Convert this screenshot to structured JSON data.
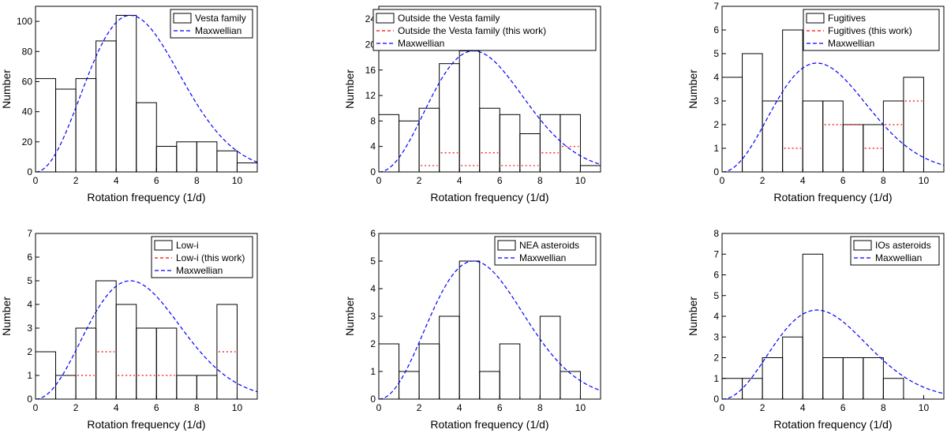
{
  "figure": {
    "panels": [
      {
        "chart_data": {
          "type": "bar",
          "bin_edges": [
            0,
            1,
            2,
            3,
            4,
            5,
            6,
            7,
            8,
            9,
            10,
            11
          ],
          "values": [
            62,
            55,
            62,
            87,
            104,
            46,
            17,
            20,
            20,
            14,
            6
          ],
          "xlabel": "Rotation frequency (1/d)",
          "ylabel": "Number",
          "xlim": [
            0,
            11
          ],
          "ylim": [
            0,
            110
          ],
          "xticks": [
            0,
            2,
            4,
            6,
            8,
            10
          ],
          "yticks": [
            0,
            20,
            40,
            60,
            80,
            100
          ],
          "maxwellian_peak": 104,
          "maxwellian_mode": 4.7,
          "legend": [
            "Vesta family",
            "Maxwellian"
          ],
          "legend_position": "top-right"
        }
      },
      {
        "chart_data": {
          "type": "bar",
          "bin_edges": [
            0,
            1,
            2,
            3,
            4,
            5,
            6,
            7,
            8,
            9,
            10,
            11
          ],
          "values": [
            9,
            8,
            10,
            17,
            19,
            10,
            9,
            6,
            9,
            9,
            1
          ],
          "this_work_values": [
            0,
            0,
            1,
            3,
            1,
            3,
            1,
            1,
            3,
            4,
            0
          ],
          "xlabel": "Rotation frequency (1/d)",
          "ylabel": "Number",
          "xlim": [
            0,
            11
          ],
          "ylim": [
            0,
            26
          ],
          "xticks": [
            0,
            2,
            4,
            6,
            8,
            10
          ],
          "yticks": [
            0,
            4,
            8,
            12,
            16,
            20,
            24
          ],
          "maxwellian_peak": 19,
          "maxwellian_mode": 4.7,
          "legend": [
            "Outside the Vesta family",
            "Outside the Vesta family (this work)",
            "Maxwellian"
          ],
          "legend_position": "top-right"
        }
      },
      {
        "chart_data": {
          "type": "bar",
          "bin_edges": [
            0,
            1,
            2,
            3,
            4,
            5,
            6,
            7,
            8,
            9,
            10,
            11
          ],
          "values": [
            4,
            5,
            3,
            6,
            3,
            3,
            2,
            2,
            3,
            4,
            0
          ],
          "this_work_values": [
            0,
            0,
            0,
            1,
            0,
            2,
            2,
            1,
            2,
            3,
            0
          ],
          "xlabel": "Rotation frequency (1/d)",
          "ylabel": "Number",
          "xlim": [
            0,
            11
          ],
          "ylim": [
            0,
            7
          ],
          "xticks": [
            0,
            2,
            4,
            6,
            8,
            10
          ],
          "yticks": [
            0,
            1,
            2,
            3,
            4,
            5,
            6,
            7
          ],
          "maxwellian_peak": 4.6,
          "maxwellian_mode": 4.7,
          "legend": [
            "Fugitives",
            "Fugitives (this work)",
            "Maxwellian"
          ],
          "legend_position": "top-right"
        }
      },
      {
        "chart_data": {
          "type": "bar",
          "bin_edges": [
            0,
            1,
            2,
            3,
            4,
            5,
            6,
            7,
            8,
            9,
            10,
            11
          ],
          "values": [
            2,
            1,
            3,
            5,
            4,
            3,
            3,
            1,
            1,
            4,
            0
          ],
          "this_work_values": [
            0,
            0,
            1,
            2,
            1,
            1,
            1,
            0,
            0,
            2,
            0
          ],
          "xlabel": "Rotation frequency (1/d)",
          "ylabel": "Number",
          "xlim": [
            0,
            11
          ],
          "ylim": [
            0,
            7
          ],
          "xticks": [
            0,
            2,
            4,
            6,
            8,
            10
          ],
          "yticks": [
            0,
            1,
            2,
            3,
            4,
            5,
            6,
            7
          ],
          "maxwellian_peak": 5,
          "maxwellian_mode": 4.7,
          "legend": [
            "Low-i",
            "Low-i (this work)",
            "Maxwellian"
          ],
          "legend_position": "top-right"
        }
      },
      {
        "chart_data": {
          "type": "bar",
          "bin_edges": [
            0,
            1,
            2,
            3,
            4,
            5,
            6,
            7,
            8,
            9,
            10,
            11
          ],
          "values": [
            2,
            1,
            2,
            3,
            5,
            1,
            2,
            0,
            3,
            1,
            0
          ],
          "xlabel": "Rotation frequency (1/d)",
          "ylabel": "Number",
          "xlim": [
            0,
            11
          ],
          "ylim": [
            0,
            6
          ],
          "xticks": [
            0,
            2,
            4,
            6,
            8,
            10
          ],
          "yticks": [
            0,
            1,
            2,
            3,
            4,
            5,
            6
          ],
          "maxwellian_peak": 5,
          "maxwellian_mode": 4.7,
          "legend": [
            "NEA asteroids",
            "Maxwellian"
          ],
          "legend_position": "top-right"
        }
      },
      {
        "chart_data": {
          "type": "bar",
          "bin_edges": [
            0,
            1,
            2,
            3,
            4,
            5,
            6,
            7,
            8,
            9,
            10,
            11
          ],
          "values": [
            1,
            1,
            2,
            3,
            7,
            2,
            2,
            2,
            1,
            0,
            0
          ],
          "xlabel": "Rotation frequency (1/d)",
          "ylabel": "Number",
          "xlim": [
            0,
            11
          ],
          "ylim": [
            0,
            8
          ],
          "xticks": [
            0,
            2,
            4,
            6,
            8,
            10
          ],
          "yticks": [
            0,
            1,
            2,
            3,
            4,
            5,
            6,
            7,
            8
          ],
          "maxwellian_peak": 4.3,
          "maxwellian_mode": 4.7,
          "legend": [
            "IOs asteroids",
            "Maxwellian"
          ],
          "legend_position": "top-right"
        }
      }
    ],
    "colors": {
      "bar_edge": "#000000",
      "maxwellian": "#0000ff",
      "this_work": "#ff0000"
    }
  }
}
